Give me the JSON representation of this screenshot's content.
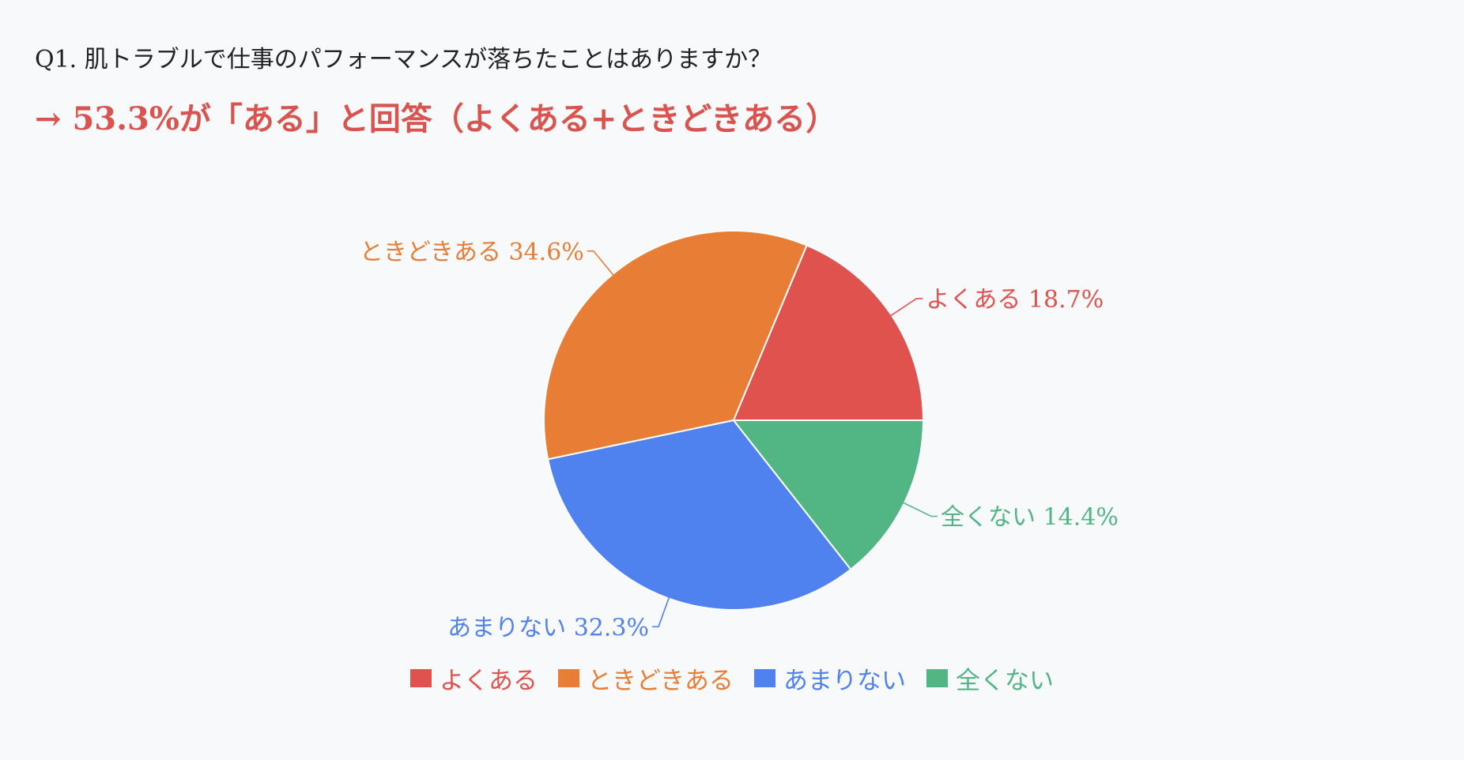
{
  "header": {
    "question": "Q1. 肌トラブルで仕事のパフォーマンスが落ちたことはありますか？",
    "headline": "→ 53.3%が「ある」と回答（よくある+ときどきある）",
    "headline_color": "#d9534f"
  },
  "chart_data": {
    "type": "pie",
    "title": "",
    "slices": [
      {
        "label": "よくある",
        "value": 18.7,
        "value_label": "18.7%",
        "color": "#df524e"
      },
      {
        "label": "ときどきある",
        "value": 34.6,
        "value_label": "34.6%",
        "color": "#e87d36"
      },
      {
        "label": "あまりない",
        "value": 32.3,
        "value_label": "32.3%",
        "color": "#4f82ef"
      },
      {
        "label": "全くない",
        "value": 14.4,
        "value_label": "14.4%",
        "color": "#52b584"
      }
    ],
    "legend_position": "bottom"
  }
}
